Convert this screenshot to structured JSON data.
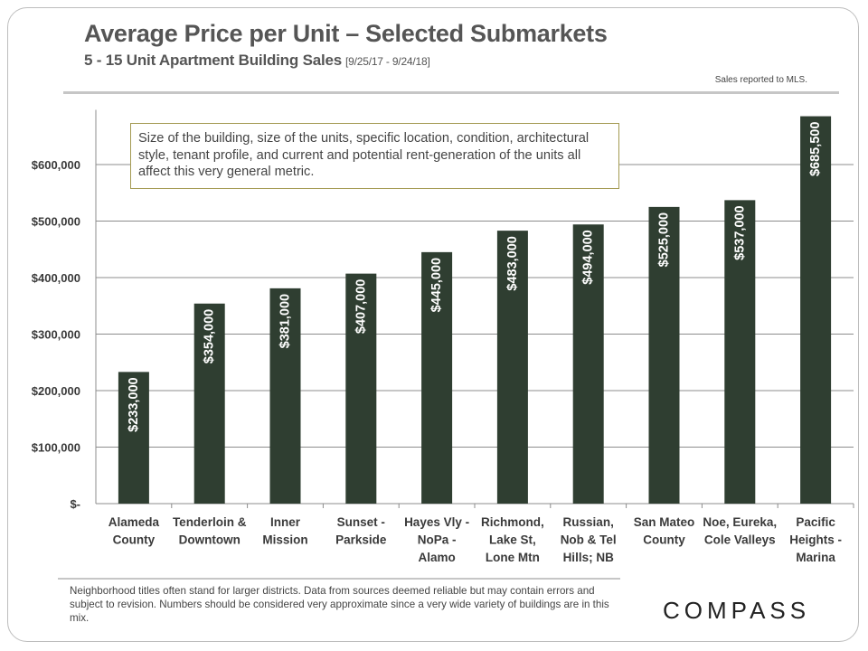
{
  "header": {
    "title": "Average Price per Unit – Selected Submarkets",
    "subtitle": "5 - 15 Unit Apartment Building Sales",
    "date_range": "[9/25/17 - 9/24/18]",
    "source_note": "Sales reported to MLS."
  },
  "callout": {
    "text": "Size of the building, size of the units, specific location, condition, architectural style, tenant profile, and current and potential rent-generation of the units all affect this very general metric."
  },
  "footnote": {
    "text": "Neighborhood titles often stand for larger districts. Data from sources deemed reliable but may contain errors and subject to revision. Numbers should be considered very approximate since a very wide variety of buildings  are in this mix."
  },
  "logo": {
    "text": "COMPASS"
  },
  "colors": {
    "bar": "#2f3e31",
    "grid": "#8c8c8c",
    "bar_label": "#ffffff",
    "axis_text": "#3a3a3a"
  },
  "chart_data": {
    "type": "bar",
    "title": "Average Price per Unit – Selected Submarkets",
    "xlabel": "",
    "ylabel": "",
    "ylim": [
      0,
      700000
    ],
    "yticks": [
      0,
      100000,
      200000,
      300000,
      400000,
      500000,
      600000
    ],
    "ytick_labels": [
      "$-",
      "$100,000",
      "$200,000",
      "$300,000",
      "$400,000",
      "$500,000",
      "$600,000"
    ],
    "grid": true,
    "categories": [
      [
        "Alameda",
        "County"
      ],
      [
        "Tenderloin &",
        "Downtown"
      ],
      [
        "Inner",
        "Mission"
      ],
      [
        "Sunset -",
        "Parkside"
      ],
      [
        "Hayes Vly -",
        "NoPa -",
        "Alamo"
      ],
      [
        "Richmond,",
        "Lake St,",
        "Lone Mtn"
      ],
      [
        "Russian,",
        "Nob & Tel",
        "Hills; NB"
      ],
      [
        "San Mateo",
        "County"
      ],
      [
        "Noe, Eureka,",
        "Cole Valleys"
      ],
      [
        "Pacific",
        "Heights -",
        "Marina"
      ]
    ],
    "values": [
      233000,
      354000,
      381000,
      407000,
      445000,
      483000,
      494000,
      525000,
      537000,
      685500
    ],
    "data_labels": [
      "$233,000",
      "$354,000",
      "$381,000",
      "$407,000",
      "$445,000",
      "$483,000",
      "$494,000",
      "$525,000",
      "$537,000",
      "$685,500"
    ]
  }
}
